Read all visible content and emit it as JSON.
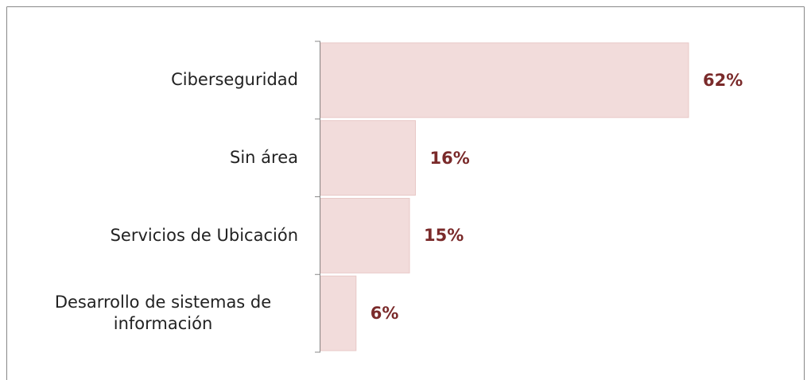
{
  "chart_data": {
    "type": "bar",
    "orientation": "horizontal",
    "categories": [
      "Ciberseguridad",
      "Sin área",
      "Servicios de Ubicación",
      "Desarrollo de sistemas de información"
    ],
    "values": [
      62,
      16,
      15,
      6
    ],
    "value_labels": [
      "62%",
      "16%",
      "15%",
      "6%"
    ],
    "color": "#f2dcdb",
    "label_color": "#7a2a2a",
    "xlim": [
      0,
      62
    ]
  }
}
